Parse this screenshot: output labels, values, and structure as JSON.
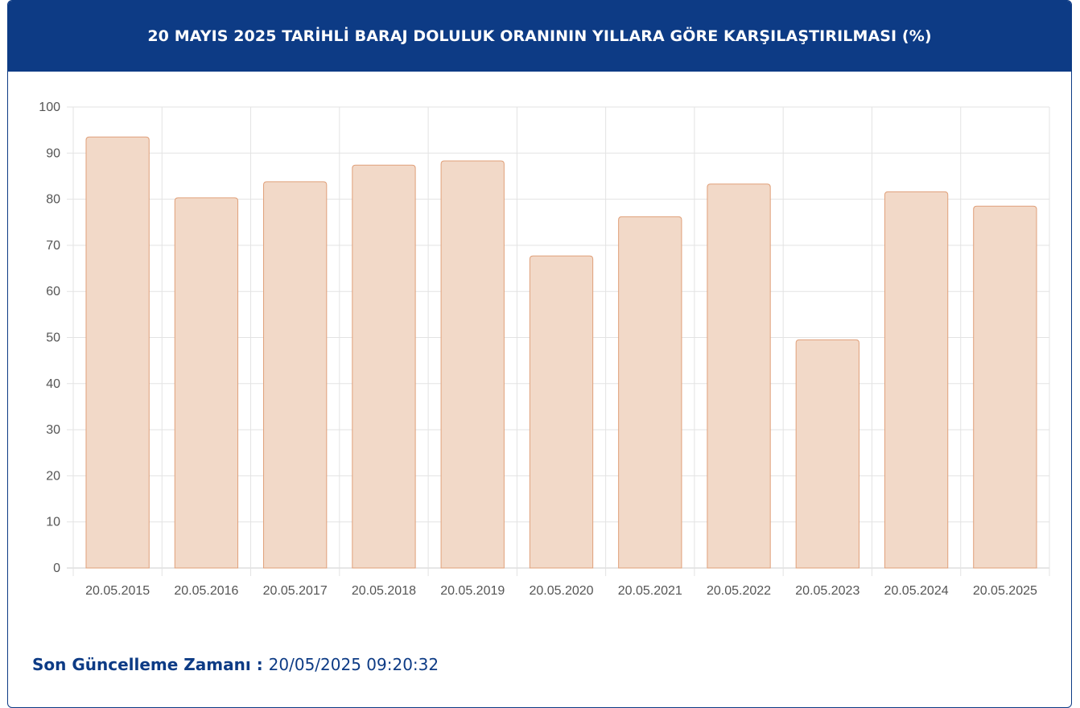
{
  "header": {
    "title": "20 MAYIS 2025 TARİHLİ BARAJ DOLULUK ORANININ YILLARA GÖRE KARŞILAŞTIRILMASI (%)"
  },
  "footer": {
    "label": "Son Güncelleme Zamanı : ",
    "value": "20/05/2025 09:20:32"
  },
  "colors": {
    "header_bg": "#0d3b85",
    "bar_fill": "#f2d9c8",
    "bar_stroke": "#e0a07a",
    "grid": "#e3e3e3"
  },
  "chart_data": {
    "type": "bar",
    "categories": [
      "20.05.2015",
      "20.05.2016",
      "20.05.2017",
      "20.05.2018",
      "20.05.2019",
      "20.05.2020",
      "20.05.2021",
      "20.05.2022",
      "20.05.2023",
      "20.05.2024",
      "20.05.2025"
    ],
    "values": [
      93.5,
      80.3,
      83.8,
      87.4,
      88.3,
      67.7,
      76.2,
      83.3,
      49.5,
      81.6,
      78.5
    ],
    "ylim": [
      0,
      100
    ],
    "yticks": [
      0,
      10,
      20,
      30,
      40,
      50,
      60,
      70,
      80,
      90,
      100
    ],
    "grid": true,
    "legend": "none"
  }
}
